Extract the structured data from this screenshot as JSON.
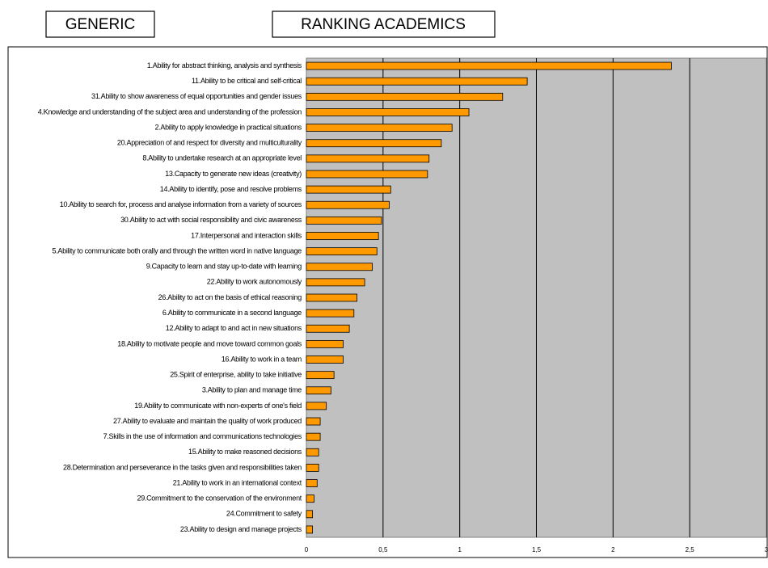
{
  "chart_data": {
    "type": "barh",
    "subtitle": "GENERIC",
    "title": "RANKING ACADEMICS",
    "categories": [
      "1.Ability for abstract thinking, analysis and synthesis",
      "11.Ability to be critical and self-critical",
      "31.Ability to show awareness of equal opportunities and gender issues",
      "4.Knowledge and understanding of the subject area and understanding of the profession",
      "2.Ability to apply knowledge in practical situations",
      "20.Appreciation of and respect for diversity and multiculturality",
      "8.Ability to undertake research at an appropriate level",
      "13.Capacity to generate new ideas (creativity)",
      "14.Ability to identify, pose and resolve problems",
      "10.Ability to search for, process and analyse information from a variety of sources",
      "30.Ability to act with social responsibility and civic awareness",
      "17.Interpersonal and interaction skills",
      "5.Ability to communicate both orally and through the written word in native language",
      "9.Capacity to learn and stay up-to-date with learning",
      "22.Ability to work autonomously",
      "26.Ability to act on the basis of ethical reasoning",
      "6.Ability to communicate in a second language",
      "12.Ability to adapt to and act in new situations",
      "18.Ability to motivate people and move toward common goals",
      "16.Ability to work in a team",
      "25.Spirit of enterprise, ability to take initiative",
      "3.Ability to plan and manage time",
      "19.Ability to communicate with non-experts of one's field",
      "27.Ability to evaluate and maintain the quality of work produced",
      "7.Skills in the use of information and communications technologies",
      "15.Ability to make reasoned decisions",
      "28.Determination and perseverance in the tasks given and responsibilities taken",
      "21.Ability to work in an international context",
      "29.Commitment to the conservation of the environment",
      "24.Commitment to safety",
      "23.Ability to design and manage projects"
    ],
    "values": [
      2.38,
      1.44,
      1.28,
      1.06,
      0.95,
      0.88,
      0.8,
      0.79,
      0.55,
      0.54,
      0.49,
      0.47,
      0.46,
      0.43,
      0.38,
      0.33,
      0.31,
      0.28,
      0.24,
      0.24,
      0.18,
      0.16,
      0.13,
      0.09,
      0.09,
      0.08,
      0.08,
      0.07,
      0.05,
      0.04,
      0.04
    ],
    "color": "#ff9900",
    "xlim": [
      0,
      3
    ],
    "xticks": [
      0,
      {
        "value": 0.5,
        "label": "0,5"
      },
      1,
      {
        "value": 1.5,
        "label": "1,5"
      },
      2,
      {
        "value": 2.5,
        "label": "2,5"
      },
      3
    ],
    "grid": true
  }
}
